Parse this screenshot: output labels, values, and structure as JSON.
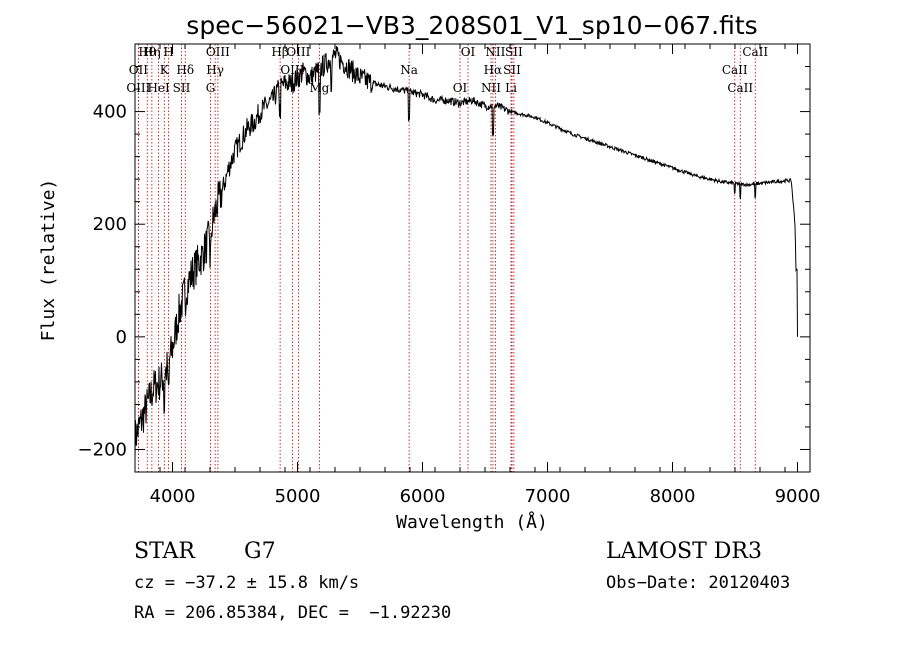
{
  "chart_data": {
    "type": "line",
    "title": "spec−56021−VB3_208S01_V1_sp10−067.fits",
    "xlabel": "Wavelength (Å)",
    "ylabel": "Flux (relative)",
    "xlim": [
      3700,
      9100
    ],
    "ylim": [
      -240,
      520
    ],
    "xticks": [
      4000,
      5000,
      6000,
      7000,
      8000,
      9000
    ],
    "yticks": [
      -200,
      0,
      200,
      400
    ],
    "series": [
      {
        "name": "flux",
        "x": [
          3700,
          3750,
          3800,
          3850,
          3900,
          3950,
          4000,
          4050,
          4100,
          4150,
          4200,
          4250,
          4300,
          4350,
          4400,
          4450,
          4500,
          4550,
          4600,
          4650,
          4700,
          4750,
          4800,
          4850,
          4900,
          4950,
          5000,
          5050,
          5100,
          5150,
          5200,
          5250,
          5300,
          5350,
          5400,
          5450,
          5500,
          5600,
          5700,
          5800,
          5900,
          6000,
          6100,
          6200,
          6300,
          6400,
          6500,
          6600,
          6700,
          6800,
          6900,
          7000,
          7200,
          7400,
          7600,
          7800,
          8000,
          8200,
          8400,
          8600,
          8800,
          8950,
          8980,
          9000
        ],
        "y": [
          -180,
          -150,
          -120,
          -90,
          -80,
          -60,
          -20,
          40,
          80,
          110,
          130,
          150,
          180,
          230,
          260,
          300,
          330,
          350,
          370,
          380,
          400,
          410,
          420,
          440,
          450,
          450,
          460,
          470,
          460,
          470,
          480,
          490,
          500,
          490,
          480,
          470,
          460,
          450,
          445,
          440,
          435,
          430,
          420,
          420,
          415,
          420,
          410,
          410,
          400,
          395,
          390,
          380,
          360,
          345,
          330,
          315,
          300,
          285,
          275,
          270,
          275,
          278,
          200,
          0
        ]
      }
    ],
    "spectral_lines": [
      {
        "label": "Hθ",
        "x": 3798
      },
      {
        "label": "OII",
        "x": 3727
      },
      {
        "label": "OIII",
        "x": 3727
      },
      {
        "label": "Hη",
        "x": 3835
      },
      {
        "label": "K",
        "x": 3934
      },
      {
        "label": "HeI",
        "x": 3889
      },
      {
        "label": "H",
        "x": 3969
      },
      {
        "label": "Hδ",
        "x": 4102
      },
      {
        "label": "SII",
        "x": 4072
      },
      {
        "label": "OIII",
        "x": 4363
      },
      {
        "label": "Hγ",
        "x": 4341
      },
      {
        "label": "G",
        "x": 4304
      },
      {
        "label": "OIII",
        "x": 5007
      },
      {
        "label": "OIII",
        "x": 4959
      },
      {
        "label": "Mg",
        "x": 5175
      },
      {
        "label": "Hβ",
        "x": 4861
      },
      {
        "label": "Na",
        "x": 5893
      },
      {
        "label": "OI",
        "x": 6300
      },
      {
        "label": "OI",
        "x": 6364
      },
      {
        "label": "Hα",
        "x": 6563
      },
      {
        "label": "NII",
        "x": 6548
      },
      {
        "label": "NII",
        "x": 6583
      },
      {
        "label": "SII",
        "x": 6716
      },
      {
        "label": "Li",
        "x": 6708
      },
      {
        "label": "SII",
        "x": 6731
      },
      {
        "label": "CaII",
        "x": 8498
      },
      {
        "label": "CaII",
        "x": 8542
      },
      {
        "label": "CaII",
        "x": 8662
      }
    ]
  },
  "info": {
    "object_class": "STAR",
    "subclass": "G7",
    "survey": "LAMOST DR3",
    "cz_line": "cz = −37.2 ± 15.8 km/s",
    "obs_date_line": "Obs−Date: 20120403",
    "radec_line": "RA = 206.85384, DEC =  −1.92230"
  }
}
